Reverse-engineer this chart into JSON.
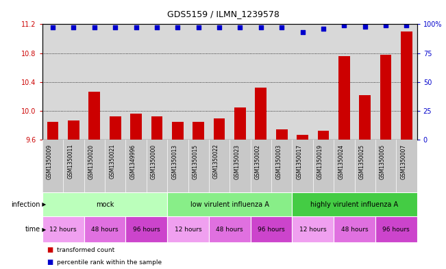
{
  "title": "GDS5159 / ILMN_1239578",
  "samples": [
    "GSM1350009",
    "GSM1350011",
    "GSM1350020",
    "GSM1350021",
    "GSM1349996",
    "GSM1350000",
    "GSM1350013",
    "GSM1350015",
    "GSM1350022",
    "GSM1350023",
    "GSM1350002",
    "GSM1350003",
    "GSM1350017",
    "GSM1350019",
    "GSM1350024",
    "GSM1350025",
    "GSM1350005",
    "GSM1350007"
  ],
  "bar_values": [
    9.85,
    9.87,
    10.27,
    9.93,
    9.96,
    9.93,
    9.85,
    9.85,
    9.9,
    10.05,
    10.32,
    9.75,
    9.67,
    9.73,
    10.76,
    10.22,
    10.78,
    11.1
  ],
  "percentile_values": [
    97,
    97,
    97,
    97,
    97,
    97,
    97,
    97,
    97,
    97,
    97,
    97,
    93,
    96,
    99,
    98,
    99,
    99
  ],
  "ylim_left": [
    9.6,
    11.2
  ],
  "yticks_left": [
    9.6,
    10.0,
    10.4,
    10.8,
    11.2
  ],
  "ylim_right": [
    0,
    100
  ],
  "yticks_right": [
    0,
    25,
    50,
    75,
    100
  ],
  "ytick_labels_right": [
    "0",
    "25",
    "50",
    "75",
    "100%"
  ],
  "bar_color": "#cc0000",
  "dot_color": "#0000cc",
  "infection_groups": [
    {
      "label": "mock",
      "start": 0,
      "end": 6,
      "color": "#bbffbb"
    },
    {
      "label": "low virulent influenza A",
      "start": 6,
      "end": 12,
      "color": "#88ee88"
    },
    {
      "label": "highly virulent influenza A",
      "start": 12,
      "end": 18,
      "color": "#44cc44"
    }
  ],
  "time_groups": [
    {
      "label": "12 hours",
      "start": 0,
      "end": 2,
      "color": "#f0a0f0"
    },
    {
      "label": "48 hours",
      "start": 2,
      "end": 4,
      "color": "#e070e0"
    },
    {
      "label": "96 hours",
      "start": 4,
      "end": 6,
      "color": "#cc44cc"
    },
    {
      "label": "12 hours",
      "start": 6,
      "end": 8,
      "color": "#f0a0f0"
    },
    {
      "label": "48 hours",
      "start": 8,
      "end": 10,
      "color": "#e070e0"
    },
    {
      "label": "96 hours",
      "start": 10,
      "end": 12,
      "color": "#cc44cc"
    },
    {
      "label": "12 hours",
      "start": 12,
      "end": 14,
      "color": "#f0a0f0"
    },
    {
      "label": "48 hours",
      "start": 14,
      "end": 16,
      "color": "#e070e0"
    },
    {
      "label": "96 hours",
      "start": 16,
      "end": 18,
      "color": "#cc44cc"
    }
  ],
  "legend_bar_label": "transformed count",
  "legend_dot_label": "percentile rank within the sample",
  "infection_row_label": "infection",
  "time_row_label": "time",
  "left_axis_color": "#cc0000",
  "right_axis_color": "#0000cc",
  "plot_bg_color": "#d8d8d8",
  "sample_bg_color": "#c8c8c8"
}
